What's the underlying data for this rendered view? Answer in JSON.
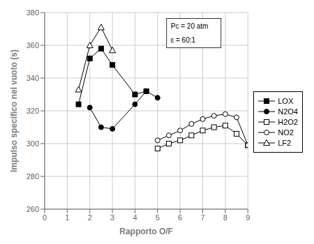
{
  "chart_data": {
    "type": "line",
    "xlabel": "Rapporto O/F",
    "ylabel": "Impulso specifico nel vuoto (s)",
    "xlim": [
      0,
      9
    ],
    "ylim": [
      260,
      380
    ],
    "xticks": [
      0,
      1,
      2,
      3,
      4,
      5,
      6,
      7,
      8,
      9
    ],
    "yticks": [
      260,
      280,
      300,
      320,
      340,
      360,
      380
    ],
    "grid": true,
    "legend": "right",
    "annotations": [
      "Pc = 20 atm",
      "ε = 60:1"
    ],
    "series": [
      {
        "name": "LOX",
        "color": "#000000",
        "marker": "square",
        "x": [
          1.5,
          2.0,
          2.5,
          3.0,
          4.0,
          4.5
        ],
        "values": [
          324,
          352,
          358,
          348,
          330,
          332
        ]
      },
      {
        "name": "N2O4",
        "color": "#000000",
        "marker": "circle",
        "x": [
          2.0,
          2.5,
          3.0,
          4.0,
          4.5,
          5.0
        ],
        "values": [
          322,
          310,
          309,
          324,
          332,
          328
        ]
      },
      {
        "name": "H2O2",
        "color": "#000000",
        "marker": "square_open",
        "x": [
          5.0,
          5.5,
          6.0,
          6.5,
          7.0,
          7.5,
          8.0,
          8.5,
          9.0
        ],
        "values": [
          297,
          300,
          302,
          305,
          308,
          310,
          311,
          306,
          299
        ]
      },
      {
        "name": "NO2",
        "color": "#000000",
        "marker": "circle_open",
        "x": [
          5.0,
          5.5,
          6.0,
          6.5,
          7.0,
          7.5,
          8.0,
          8.5,
          9.0
        ],
        "values": [
          302,
          305,
          308,
          312,
          315,
          317,
          318,
          316,
          299
        ]
      },
      {
        "name": "LF2",
        "color": "#000000",
        "marker": "triangle_open",
        "x": [
          1.5,
          2.0,
          2.5,
          3.0
        ],
        "values": [
          333,
          360,
          371,
          357
        ]
      }
    ]
  }
}
